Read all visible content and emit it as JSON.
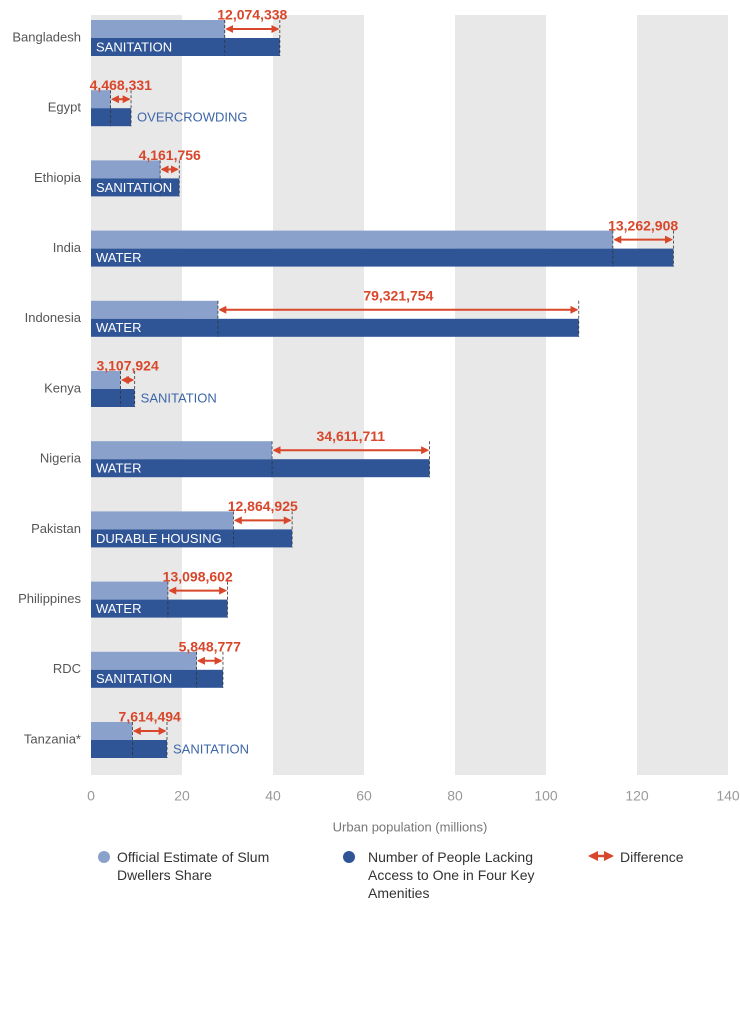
{
  "chart_data": {
    "type": "bar",
    "orientation": "horizontal",
    "x_label": "Urban population (millions)",
    "categories": [
      "Bangladesh",
      "Egypt",
      "Ethiopia",
      "India",
      "Indonesia",
      "Kenya",
      "Nigeria",
      "Pakistan",
      "Philippines",
      "RDC",
      "Tanzania*"
    ],
    "amenities": [
      "SANITATION",
      "OVERCROWDING",
      "SANITATION",
      "WATER",
      "WATER",
      "SANITATION",
      "WATER",
      "DURABLE HOUSING",
      "WATER",
      "SANITATION",
      "SANITATION"
    ],
    "series": [
      {
        "name": "Official Estimate of Slum Dwellers Share",
        "color": "#8aa1cc",
        "values": [
          29.4,
          4.3,
          15.2,
          114.7,
          27.9,
          6.5,
          39.8,
          31.3,
          16.9,
          23.2,
          9.1
        ]
      },
      {
        "name": "Number of People Lacking Access to One in Four Key Amenities",
        "color": "#2f5597",
        "values": [
          41.5,
          8.8,
          19.4,
          128.0,
          107.2,
          9.6,
          74.4,
          44.2,
          30.0,
          29.0,
          16.7
        ]
      },
      {
        "name": "Difference",
        "color": "#d9472b",
        "values": [
          12.074338,
          4.468331,
          4.161756,
          13.262908,
          79.321754,
          3.107924,
          34.611711,
          12.864925,
          13.098602,
          5.848777,
          7.614494
        ],
        "value_labels": [
          "12,074,338",
          "4,468,331",
          "4,161,756",
          "13,262,908",
          "79,321,754",
          "3,107,924",
          "34,611,711",
          "12,864,925",
          "13,098,602",
          "5,848,777",
          "7,614,494"
        ]
      }
    ],
    "xlim": [
      0,
      140
    ],
    "xticks": [
      0,
      20,
      40,
      60,
      80,
      100,
      120,
      140
    ],
    "grid": "bands"
  }
}
